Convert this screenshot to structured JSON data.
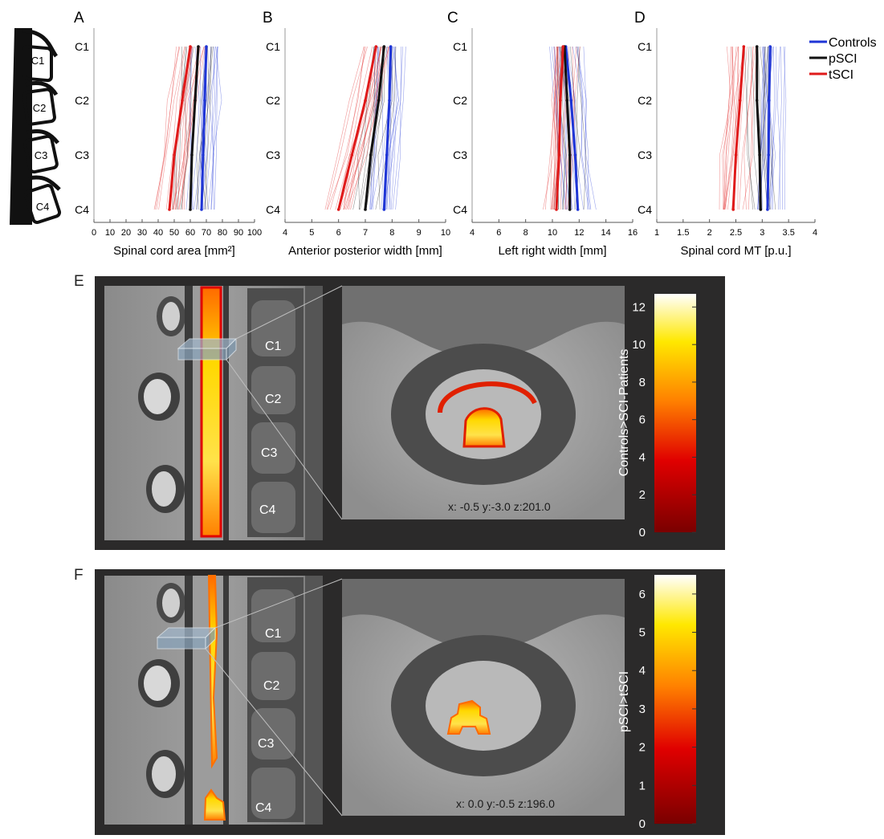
{
  "panel_letters": [
    "A",
    "B",
    "C",
    "D",
    "E",
    "F"
  ],
  "legend": [
    {
      "name": "Controls",
      "color": "#1f35d6"
    },
    {
      "name": "pSCI",
      "color": "#111111"
    },
    {
      "name": "tSCI",
      "color": "#e01a1a"
    }
  ],
  "vertebra_labels": [
    "C1",
    "C2",
    "C3",
    "C4"
  ],
  "chart_data": [
    {
      "type": "line",
      "panel": "A",
      "xlabel": "Spinal cord area [mm²]",
      "xlim": [
        0,
        100
      ],
      "xticks": [
        "0",
        "10",
        "20",
        "30",
        "40",
        "50",
        "60",
        "70",
        "80",
        "90",
        "100"
      ],
      "categories": [
        "C1",
        "C2",
        "C3",
        "C4"
      ],
      "series": [
        {
          "name": "Controls",
          "values": [
            70,
            69,
            68,
            67
          ]
        },
        {
          "name": "pSCI",
          "values": [
            65,
            63,
            61,
            60
          ]
        },
        {
          "name": "tSCI",
          "values": [
            60,
            55,
            50,
            47
          ]
        }
      ]
    },
    {
      "type": "line",
      "panel": "B",
      "xlabel": "Anterior posterior width [mm]",
      "xlim": [
        4,
        10
      ],
      "xticks": [
        "4",
        "5",
        "6",
        "7",
        "8",
        "9",
        "10"
      ],
      "categories": [
        "C1",
        "C2",
        "C3",
        "C4"
      ],
      "series": [
        {
          "name": "Controls",
          "values": [
            7.95,
            7.9,
            7.8,
            7.7
          ]
        },
        {
          "name": "pSCI",
          "values": [
            7.7,
            7.5,
            7.2,
            7.0
          ]
        },
        {
          "name": "tSCI",
          "values": [
            7.4,
            7.0,
            6.5,
            6.0
          ]
        }
      ]
    },
    {
      "type": "line",
      "panel": "C",
      "xlabel": "Left right width [mm]",
      "xlim": [
        4,
        16
      ],
      "xticks": [
        "4",
        "6",
        "8",
        "10",
        "12",
        "14",
        "16"
      ],
      "categories": [
        "C1",
        "C2",
        "C3",
        "C4"
      ],
      "series": [
        {
          "name": "Controls",
          "values": [
            11.0,
            11.4,
            11.7,
            11.9
          ]
        },
        {
          "name": "pSCI",
          "values": [
            10.9,
            11.1,
            11.3,
            11.3
          ]
        },
        {
          "name": "tSCI",
          "values": [
            10.8,
            10.6,
            10.5,
            10.3
          ]
        }
      ]
    },
    {
      "type": "line",
      "panel": "D",
      "xlabel": "Spinal cord MT [p.u.]",
      "xlim": [
        1,
        4
      ],
      "xticks": [
        "1",
        "1.5",
        "2",
        "2.5",
        "3",
        "3.5",
        "4"
      ],
      "categories": [
        "C1",
        "C2",
        "C3",
        "C4"
      ],
      "series": [
        {
          "name": "Controls",
          "values": [
            3.15,
            3.13,
            3.12,
            3.1
          ]
        },
        {
          "name": "pSCI",
          "values": [
            2.9,
            2.9,
            2.95,
            2.97
          ]
        },
        {
          "name": "tSCI",
          "values": [
            2.65,
            2.58,
            2.5,
            2.45
          ]
        }
      ]
    },
    {
      "type": "heatmap",
      "panel": "E",
      "colorbar_label": "Controls>SCI-Patients",
      "colorbar_range": [
        0,
        12.7
      ],
      "colorbar_ticks": [
        "0",
        "2",
        "4",
        "6",
        "8",
        "10",
        "12"
      ],
      "coords_text": "x: -0.5 y:-3.0 z:201.0"
    },
    {
      "type": "heatmap",
      "panel": "F",
      "colorbar_label": "pSCI>tSCI",
      "colorbar_range": [
        0,
        6.5
      ],
      "colorbar_ticks": [
        "0",
        "1",
        "2",
        "3",
        "4",
        "5",
        "6"
      ],
      "coords_text": "x: 0.0 y:-0.5 z:196.0"
    }
  ],
  "colors": {
    "controls": "#1f35d6",
    "pSCI": "#111111",
    "tSCI": "#e01a1a",
    "panel_bg": "#2b2a2a"
  }
}
